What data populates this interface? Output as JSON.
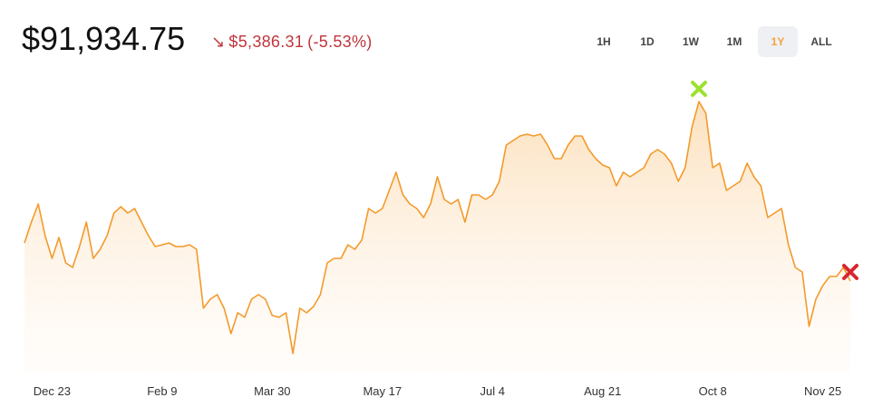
{
  "header": {
    "price": "$91,934.75",
    "arrow": "↘",
    "change": "$5,386.31",
    "change_percent": "(-5.53%)"
  },
  "range_buttons": [
    "1H",
    "1D",
    "1W",
    "1M",
    "1Y",
    "ALL"
  ],
  "selected_range": "1Y",
  "chart_data": {
    "type": "line",
    "color": "#f39a2b",
    "peak_marker_color": "#9be22d",
    "last_marker_color": "#d8262f",
    "xticks": [
      {
        "value": 4,
        "label": "Dec 23"
      },
      {
        "value": 20,
        "label": "Feb 9"
      },
      {
        "value": 36,
        "label": "Mar 30"
      },
      {
        "value": 52,
        "label": "May 17"
      },
      {
        "value": 68,
        "label": "Jul 4"
      },
      {
        "value": 84,
        "label": "Aug 21"
      },
      {
        "value": 100,
        "label": "Oct 8"
      },
      {
        "value": 116,
        "label": "Nov 25"
      }
    ],
    "values": [
      99074,
      102984,
      106384,
      100434,
      96184,
      100094,
      95334,
      94484,
      98394,
      102984,
      96184,
      97884,
      100434,
      104684,
      105874,
      104684,
      105534,
      102984,
      100434,
      98394,
      98734,
      99074,
      98394,
      98394,
      98734,
      97884,
      86834,
      88534,
      89384,
      86834,
      82074,
      85984,
      85134,
      88534,
      89384,
      88534,
      85474,
      85134,
      85984,
      78334,
      86834,
      85984,
      87174,
      89384,
      95334,
      96184,
      96184,
      98734,
      97884,
      99584,
      105534,
      104684,
      105534,
      108934,
      112334,
      108084,
      106384,
      105534,
      103834,
      106384,
      111484,
      107234,
      106384,
      107234,
      102984,
      108084,
      108084,
      107234,
      108084,
      110634,
      117434,
      118284,
      119134,
      119474,
      119134,
      119474,
      117434,
      114884,
      114884,
      117434,
      119134,
      119134,
      116584,
      114884,
      113694,
      113184,
      109784,
      112334,
      111484,
      112334,
      113184,
      115734,
      116584,
      115734,
      114034,
      110634,
      113184,
      120834,
      125594,
      123384,
      113184,
      114034,
      108934,
      109784,
      110634,
      114034,
      111484,
      109784,
      103834,
      104684,
      105534,
      98734,
      94484,
      93634,
      83434,
      88534,
      91084,
      92784,
      92784,
      94484,
      91934.75
    ]
  }
}
